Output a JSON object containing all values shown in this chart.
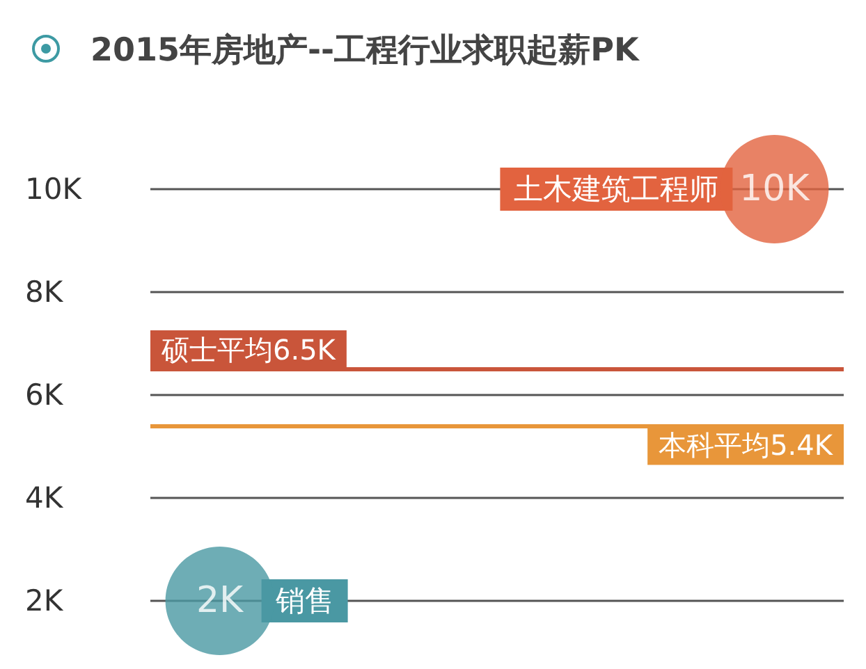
{
  "chart_data": {
    "type": "scatter",
    "title": "2015年房地产--工程行业求职起薪PK",
    "categories": [
      null,
      null,
      null,
      null,
      null
    ],
    "series": [
      {
        "colors": [
          "#4a98a3",
          null,
          null,
          null,
          "#e2633f"
        ],
        "values": [
          2,
          null,
          null,
          null,
          10
        ],
        "value_labels": [
          "2K",
          null,
          null,
          null,
          "10K"
        ]
      }
    ],
    "ylim": [
      2,
      10
    ],
    "yticks": [
      {
        "value": 2,
        "label": "2K"
      },
      {
        "value": 4,
        "label": "4K"
      },
      {
        "value": 6,
        "label": "6K"
      },
      {
        "value": 8,
        "label": "8K"
      },
      {
        "value": 10,
        "label": "10K"
      }
    ],
    "grid": "y",
    "tick_labels": "y",
    "ref_lines": [
      {
        "axis": "y",
        "value": 6.5,
        "label": "硕士平均6.5K",
        "color": "#c9553a"
      },
      {
        "axis": "y",
        "value": 5.4,
        "label": "本科平均5.4K",
        "color": "#e8963a"
      }
    ],
    "annotations": [
      "销售",
      "土木建筑工程师"
    ]
  }
}
